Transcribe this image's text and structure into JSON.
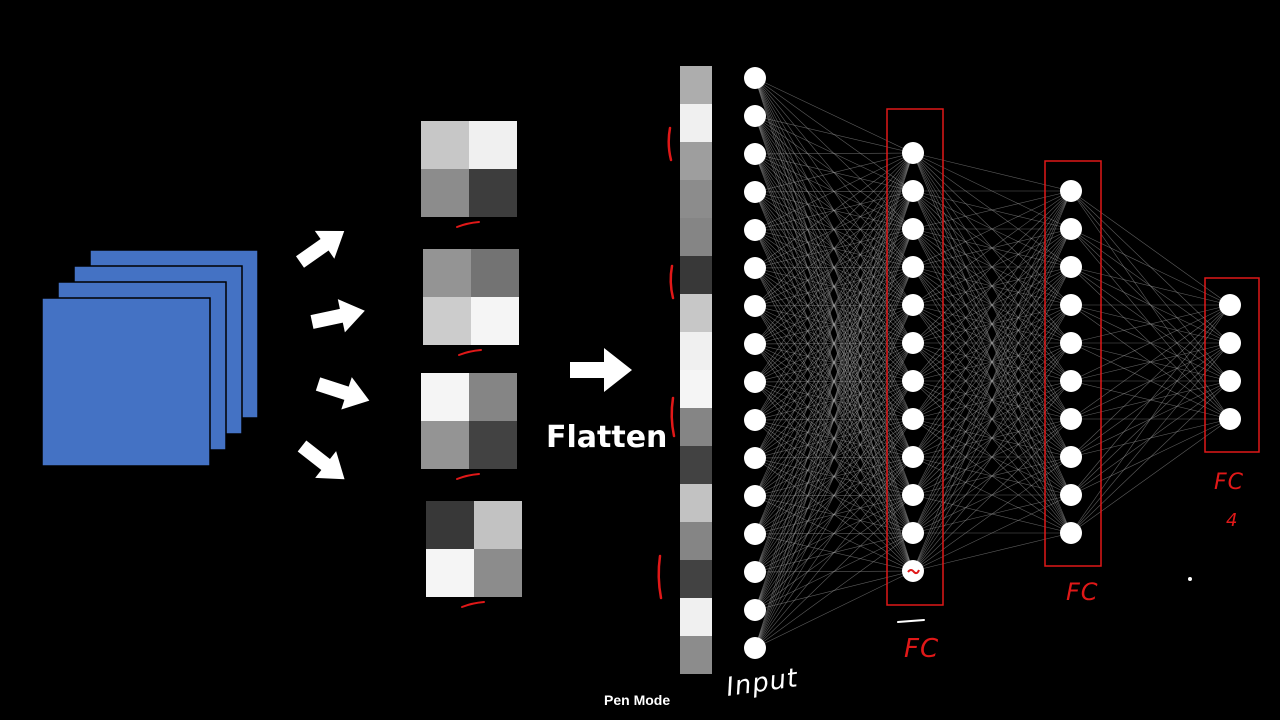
{
  "labels": {
    "flatten": "Flatten",
    "pen_mode": "Pen Mode",
    "input": "Input",
    "fc_hidden1": "FC",
    "fc_hidden2": "FC",
    "fc_output": "FC",
    "fc_output_count": "4"
  },
  "colors": {
    "background": "#000000",
    "feature_map": "#4472c4",
    "node": "#ffffff",
    "annotation": "#e01818",
    "connection": "#aaaaaa"
  },
  "network": {
    "input_nodes": 16,
    "hidden1_nodes": 12,
    "hidden2_nodes": 10,
    "output_nodes": 4
  },
  "pooled_maps": [
    [
      0.78,
      0.94,
      0.55,
      0.24
    ],
    [
      0.58,
      0.45,
      0.8,
      0.96
    ],
    [
      0.96,
      0.52,
      0.58,
      0.26
    ],
    [
      0.22,
      0.76,
      0.96,
      0.55
    ]
  ],
  "flatten_vector": [
    0.68,
    0.94,
    0.62,
    0.55,
    0.52,
    0.22,
    0.78,
    0.94,
    0.96,
    0.52,
    0.26,
    0.76,
    0.52,
    0.26,
    0.94,
    0.55
  ]
}
